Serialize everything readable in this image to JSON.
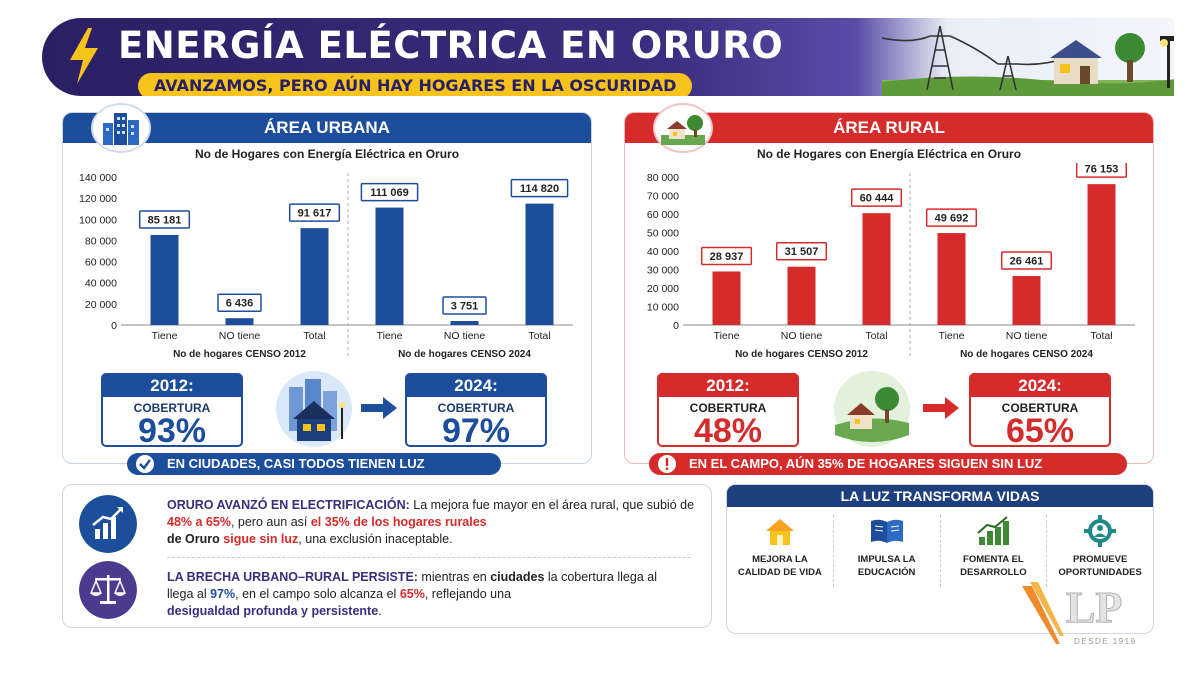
{
  "header": {
    "title": "ENERGÍA ELÉCTRICA EN ORURO",
    "subtitle": "AVANZAMOS, PERO AÚN HAY HOGARES EN LA OSCURIDAD"
  },
  "colors": {
    "urban": "#1d4e9c",
    "rural": "#d62b2b",
    "header": "#2a1f63",
    "accent_yellow": "#f6c21c"
  },
  "urban": {
    "title": "ÁREA URBANA",
    "chart_title": "No de Hogares con Energía Eléctrica en Oruro",
    "cov2012": {
      "year": "2012:",
      "label": "COBERTURA",
      "pct": "93%"
    },
    "cov2024": {
      "year": "2024:",
      "label": "COBERTURA",
      "pct": "97%"
    },
    "bottom": "EN CIUDADES, CASI TODOS TIENEN LUZ"
  },
  "rural": {
    "title": "ÁREA RURAL",
    "chart_title": "No de Hogares con Energía Eléctrica en Oruro",
    "cov2012": {
      "year": "2012:",
      "label": "COBERTURA",
      "pct": "48%"
    },
    "cov2024": {
      "year": "2024:",
      "label": "COBERTURA",
      "pct": "65%"
    },
    "bottom": "EN EL CAMPO, AÚN 35% DE HOGARES SIGUEN SIN LUZ"
  },
  "chart_data": [
    {
      "type": "bar",
      "title": "No de Hogares con Energía Eléctrica en Oruro",
      "groups": [
        {
          "label": "No de hogares CENSO 2012",
          "categories": [
            "Tiene",
            "NO tiene",
            "Total"
          ],
          "values": [
            85181,
            6436,
            91617
          ],
          "labels": [
            "85 181",
            "6 436",
            "91 617"
          ]
        },
        {
          "label": "No de hogares CENSO 2024",
          "categories": [
            "Tiene",
            "NO tiene",
            "Total"
          ],
          "values": [
            111069,
            3751,
            114820
          ],
          "labels": [
            "111 069",
            "3 751",
            "114 820"
          ]
        }
      ],
      "ylim": [
        0,
        140000
      ],
      "yticks": [
        0,
        20000,
        40000,
        60000,
        80000,
        100000,
        120000,
        140000
      ],
      "ytick_labels": [
        "0",
        "20 000",
        "40 000",
        "60 000",
        "80 000",
        "100 000",
        "120 000",
        "140 000"
      ],
      "color": "#1d4e9c",
      "grid": false
    },
    {
      "type": "bar",
      "title": "No de Hogares con Energía Eléctrica en Oruro",
      "groups": [
        {
          "label": "No de hogares CENSO 2012",
          "categories": [
            "Tiene",
            "NO tiene",
            "Total"
          ],
          "values": [
            28937,
            31507,
            60444
          ],
          "labels": [
            "28 937",
            "31 507",
            "60 444"
          ]
        },
        {
          "label": "No de hogares CENSO 2024",
          "categories": [
            "Tiene",
            "NO tiene",
            "Total"
          ],
          "values": [
            49692,
            26461,
            76153
          ],
          "labels": [
            "49 692",
            "26 461",
            "76 153"
          ]
        }
      ],
      "ylim": [
        0,
        80000
      ],
      "yticks": [
        0,
        10000,
        20000,
        30000,
        40000,
        50000,
        60000,
        70000,
        80000
      ],
      "ytick_labels": [
        "0",
        "10 000",
        "20 000",
        "30 000",
        "40 000",
        "50 000",
        "60 000",
        "70 000",
        "80 000"
      ],
      "color": "#d62b2b",
      "grid": false
    }
  ],
  "info": {
    "p1": {
      "head": "ORURO AVANZÓ EN ELECTRIFICACIÓN:",
      "t1": " La mejora fue mayor en el área rural, que subió de ",
      "r1": "48% a 65%",
      "t2": ", pero aun así ",
      "r2": "el 35% de los hogares rurales",
      "b1": "de Oruro",
      "t3": " ",
      "r3": "sigue sin luz",
      "t4": ", una exclusión inaceptable."
    },
    "p2": {
      "head": "LA BRECHA URBANO–RURAL PERSISTE:",
      "t1": " mientras en ",
      "b1": "ciudades",
      "t2": " la cobertura llega al ",
      "bl1": "97%",
      "t3": ", en el campo solo alcanza el ",
      "r1": "65%",
      "t4": ", reflejando una ",
      "pu1": "desigualdad profunda y persistente",
      "t5": "."
    }
  },
  "transform": {
    "title": "LA LUZ TRANSFORMA VIDAS",
    "items": [
      {
        "label": "MEJORA LA CALIDAD DE VIDA",
        "icon": "house-icon"
      },
      {
        "label": "IMPULSA LA EDUCACIÓN",
        "icon": "book-icon"
      },
      {
        "label": "FOMENTA EL DESARROLLO",
        "icon": "growth-chart-icon"
      },
      {
        "label": "PROMUEVE OPORTUNIDADES",
        "icon": "gear-person-icon"
      }
    ]
  },
  "logo": {
    "text": "LP",
    "since": "DESDE 1919"
  }
}
